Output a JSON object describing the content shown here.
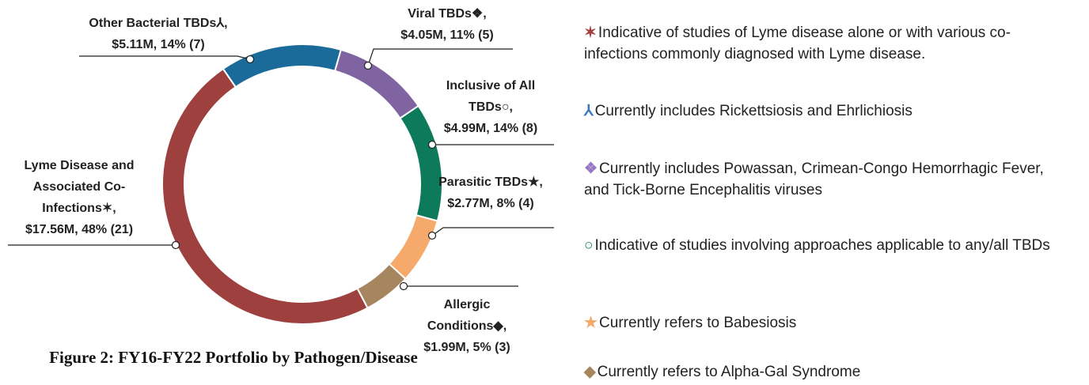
{
  "chart_data": {
    "type": "donut",
    "title": "Figure 2: FY16-FY22 Portfolio by Pathogen/Disease",
    "categories": [
      "Viral TBDs❖,",
      "Inclusive of All TBDs○,",
      "Parasitic TBDs★,",
      "Allergic Conditions◆,",
      "Lyme Disease and Associated Co-Infections✶,",
      "Other Bacterial TBDs⅄,"
    ],
    "values": [
      4.05,
      4.99,
      2.77,
      1.99,
      17.56,
      5.11
    ],
    "value_labels": [
      "$4.05M, 11% (5)",
      "$4.99M, 14% (8)",
      "$2.77M, 8% (4)",
      "$1.99M, 5% (3)",
      "$17.56M, 48% (21)",
      "$5.11M, 14% (7)"
    ],
    "colors": [
      "#8064a2",
      "#0e7a5c",
      "#f5aa6c",
      "#a6865f",
      "#9e403d",
      "#1b6b9a"
    ],
    "notes": [
      {
        "symbol": "✶",
        "color": "#a53c3c",
        "text": "Indicative of studies of Lyme disease alone or with various co-infections commonly diagnosed with Lyme disease."
      },
      {
        "symbol": "⅄",
        "color": "#3d7ab5",
        "text": "Currently includes Rickettsiosis and Ehrlichiosis"
      },
      {
        "symbol": "❖",
        "color": "#9776c4",
        "text": "Currently includes Powassan, Crimean-Congo Hemorrhagic Fever, and Tick-Borne Encephalitis viruses"
      },
      {
        "symbol": "○",
        "color": "#0e7a5c",
        "text": "Indicative of studies involving approaches applicable to any/all TBDs"
      },
      {
        "symbol": "★",
        "color": "#f5aa6c",
        "text": "Currently refers to Babesiosis"
      },
      {
        "symbol": "◆",
        "color": "#a6865f",
        "text": "Currently refers to Alpha-Gal Syndrome"
      }
    ]
  }
}
